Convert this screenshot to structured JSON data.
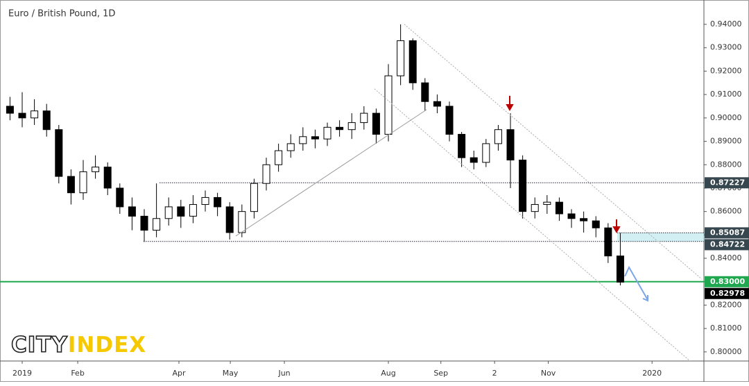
{
  "chart_data": {
    "type": "candlestick",
    "title": "Euro / British Pound, 1D",
    "x": [
      -1,
      0,
      1,
      2,
      3,
      4,
      5,
      6,
      7,
      8,
      9,
      10,
      11,
      12,
      13,
      14,
      15,
      16,
      17,
      18,
      19,
      20,
      21,
      22,
      23,
      24,
      25,
      26,
      27,
      28,
      29,
      30,
      31,
      32,
      33,
      34,
      35,
      36,
      37,
      38,
      39,
      40,
      41,
      42,
      43,
      44,
      45,
      46,
      47,
      48,
      49
    ],
    "open": [
      0.905,
      0.902,
      0.9,
      0.903,
      0.895,
      0.875,
      0.868,
      0.877,
      0.879,
      0.87,
      0.862,
      0.858,
      0.852,
      0.857,
      0.862,
      0.858,
      0.863,
      0.866,
      0.862,
      0.851,
      0.86,
      0.872,
      0.88,
      0.886,
      0.889,
      0.892,
      0.891,
      0.896,
      0.895,
      0.898,
      0.902,
      0.893,
      0.918,
      0.933,
      0.915,
      0.907,
      0.905,
      0.893,
      0.883,
      0.881,
      0.889,
      0.895,
      0.882,
      0.86,
      0.863,
      0.864,
      0.859,
      0.857,
      0.856,
      0.853,
      0.841
    ],
    "high": [
      0.909,
      0.911,
      0.908,
      0.906,
      0.897,
      0.878,
      0.882,
      0.884,
      0.881,
      0.872,
      0.866,
      0.861,
      0.872,
      0.866,
      0.865,
      0.867,
      0.869,
      0.868,
      0.864,
      0.863,
      0.874,
      0.883,
      0.889,
      0.893,
      0.896,
      0.895,
      0.898,
      0.899,
      0.902,
      0.905,
      0.904,
      0.923,
      0.94,
      0.934,
      0.917,
      0.91,
      0.907,
      0.894,
      0.886,
      0.891,
      0.897,
      0.902,
      0.884,
      0.866,
      0.867,
      0.866,
      0.861,
      0.86,
      0.858,
      0.855,
      0.8509
    ],
    "low": [
      0.899,
      0.896,
      0.897,
      0.892,
      0.872,
      0.863,
      0.865,
      0.874,
      0.867,
      0.859,
      0.852,
      0.847,
      0.849,
      0.854,
      0.853,
      0.855,
      0.86,
      0.858,
      0.848,
      0.849,
      0.857,
      0.869,
      0.877,
      0.883,
      0.886,
      0.887,
      0.888,
      0.892,
      0.891,
      0.895,
      0.889,
      0.89,
      0.914,
      0.912,
      0.903,
      0.902,
      0.89,
      0.879,
      0.878,
      0.879,
      0.886,
      0.87,
      0.857,
      0.857,
      0.859,
      0.856,
      0.853,
      0.851,
      0.849,
      0.838,
      0.8284
    ],
    "close": [
      0.902,
      0.9,
      0.903,
      0.895,
      0.875,
      0.868,
      0.877,
      0.879,
      0.87,
      0.862,
      0.858,
      0.852,
      0.857,
      0.862,
      0.858,
      0.863,
      0.866,
      0.862,
      0.851,
      0.86,
      0.872,
      0.88,
      0.886,
      0.889,
      0.892,
      0.891,
      0.896,
      0.895,
      0.898,
      0.902,
      0.893,
      0.918,
      0.933,
      0.915,
      0.907,
      0.905,
      0.893,
      0.883,
      0.881,
      0.889,
      0.895,
      0.882,
      0.86,
      0.863,
      0.864,
      0.859,
      0.857,
      0.856,
      0.853,
      0.841,
      0.8298
    ],
    "xlim": [
      -1.818,
      55.85
    ],
    "xticks": [
      {
        "value": 0,
        "label": "2019"
      },
      {
        "value": 4.55,
        "label": "Feb"
      },
      {
        "value": 12.84,
        "label": "Apr"
      },
      {
        "value": 17.05,
        "label": "May"
      },
      {
        "value": 21.48,
        "label": "Jun"
      },
      {
        "value": 30.0,
        "label": "Aug"
      },
      {
        "value": 34.3,
        "label": "Sep"
      },
      {
        "value": 38.7,
        "label": "2"
      },
      {
        "value": 43.1,
        "label": "Nov"
      },
      {
        "value": 51.6,
        "label": "2020"
      }
    ],
    "ylim": [
      0.7961,
      0.9504
    ],
    "yticks": [
      {
        "value": 0.8,
        "label": "0.80000"
      },
      {
        "value": 0.81,
        "label": "0.81000"
      },
      {
        "value": 0.82,
        "label": "0.82000"
      },
      {
        "value": 0.83,
        "label": "0.83000"
      },
      {
        "value": 0.84,
        "label": "0.84000"
      },
      {
        "value": 0.85,
        "label": "0.85000"
      },
      {
        "value": 0.86,
        "label": "0.86000"
      },
      {
        "value": 0.87,
        "label": "0.87000"
      },
      {
        "value": 0.88,
        "label": "0.88000"
      },
      {
        "value": 0.89,
        "label": "0.89000"
      },
      {
        "value": 0.9,
        "label": "0.90000"
      },
      {
        "value": 0.91,
        "label": "0.91000"
      },
      {
        "value": 0.92,
        "label": "0.92000"
      },
      {
        "value": 0.93,
        "label": "0.93000"
      },
      {
        "value": 0.94,
        "label": "0.94000"
      }
    ],
    "levels": [
      {
        "value": 0.87227,
        "label": "0.87227",
        "color": "#37474f"
      },
      {
        "value": 0.85087,
        "label": "0.85087",
        "color": "#37474f"
      },
      {
        "value": 0.84722,
        "label": "0.84722",
        "color": "#37474f"
      },
      {
        "value": 0.83,
        "label": "0.83000",
        "color": "#1fa84f"
      },
      {
        "value": 0.82978,
        "label": "0.82978",
        "color": "#000000"
      }
    ],
    "up_color": "#ffffff",
    "down_color": "#000000",
    "zone_color": "#bfe9ef",
    "logo": {
      "city": "CITY",
      "index": "INDEX"
    }
  }
}
